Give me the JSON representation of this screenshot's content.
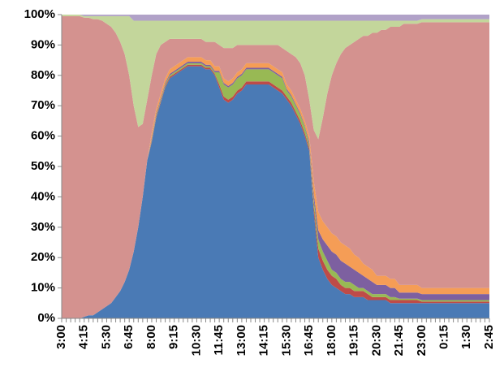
{
  "chart_data": {
    "type": "area",
    "stacked": true,
    "categories": [
      "3:00",
      null,
      null,
      null,
      null,
      "4:15",
      null,
      null,
      null,
      null,
      "5:30",
      null,
      null,
      null,
      null,
      "6:45",
      null,
      null,
      null,
      null,
      "8:00",
      null,
      null,
      null,
      null,
      "9:15",
      null,
      null,
      null,
      null,
      "10:30",
      null,
      null,
      null,
      null,
      "11:45",
      null,
      null,
      null,
      null,
      "13:00",
      null,
      null,
      null,
      null,
      "14:15",
      null,
      null,
      null,
      null,
      "15:30",
      null,
      null,
      null,
      null,
      "16:45",
      null,
      null,
      null,
      null,
      "18:00",
      null,
      null,
      null,
      null,
      "19:15",
      null,
      null,
      null,
      null,
      "20:30",
      null,
      null,
      null,
      null,
      "21:45",
      null,
      null,
      null,
      null,
      "23:00",
      null,
      null,
      null,
      null,
      "0:15",
      null,
      null,
      null,
      null,
      "1:30",
      null,
      null,
      null,
      null,
      "2:45"
    ],
    "ylim": [
      0,
      100
    ],
    "yticks": [
      {
        "value": 0,
        "label": "0%"
      },
      {
        "value": 10,
        "label": "10%"
      },
      {
        "value": 20,
        "label": "20%"
      },
      {
        "value": 30,
        "label": "30%"
      },
      {
        "value": 40,
        "label": "40%"
      },
      {
        "value": 50,
        "label": "50%"
      },
      {
        "value": 60,
        "label": "60%"
      },
      {
        "value": 70,
        "label": "70%"
      },
      {
        "value": 80,
        "label": "80%"
      },
      {
        "value": 90,
        "label": "90%"
      },
      {
        "value": 100,
        "label": "100%"
      }
    ],
    "series": [
      {
        "color": "#4a7ab5",
        "values": [
          0,
          0,
          0,
          0,
          0,
          0.5,
          1,
          1,
          2,
          3,
          4,
          5,
          7,
          9,
          12,
          16,
          22,
          30,
          40,
          52,
          58,
          66,
          71,
          76,
          79,
          80,
          81,
          82,
          83,
          83,
          83,
          83,
          82,
          82,
          80,
          76,
          72,
          71,
          72,
          74,
          75,
          77,
          77,
          77,
          77,
          77,
          77,
          76,
          75,
          74,
          72,
          70,
          67,
          64,
          60,
          55,
          35,
          20,
          16,
          13,
          11,
          10,
          9,
          8,
          8,
          7,
          7,
          7,
          6,
          6,
          6,
          6,
          6,
          5,
          5,
          5,
          5,
          5,
          5,
          5,
          5,
          5,
          5,
          5,
          5,
          5,
          5,
          5,
          5,
          5,
          5,
          5,
          5,
          5,
          5,
          5
        ]
      },
      {
        "color": "#be4b48",
        "values": [
          0,
          0,
          0,
          0,
          0,
          0,
          0,
          0,
          0,
          0,
          0,
          0,
          0,
          0,
          0,
          0,
          0,
          0,
          0,
          0,
          0.5,
          0.5,
          0.5,
          0.5,
          0.5,
          0.5,
          0.5,
          0.5,
          0.5,
          0.5,
          0.5,
          0.5,
          0.5,
          0.5,
          0.5,
          1,
          1,
          1,
          1,
          1,
          1,
          1,
          1,
          1,
          1,
          1,
          1,
          1,
          1,
          1,
          1,
          1,
          1,
          1,
          1,
          1,
          2,
          3,
          3,
          3,
          3,
          3,
          2,
          2,
          2,
          2,
          2,
          2,
          2,
          1,
          1,
          1,
          1,
          1,
          1,
          1,
          1,
          1,
          1,
          1,
          0.5,
          0.5,
          0.5,
          0.5,
          0.5,
          0.5,
          0.5,
          0.5,
          0.5,
          0.5,
          0.5,
          0.5,
          0.5,
          0.5,
          0.5,
          0.5
        ]
      },
      {
        "color": "#98b954",
        "values": [
          0,
          0,
          0,
          0,
          0,
          0,
          0,
          0,
          0,
          0,
          0,
          0,
          0,
          0,
          0,
          0,
          0,
          0,
          0,
          0,
          0.5,
          0.5,
          0.5,
          0.5,
          0.5,
          0.5,
          0.5,
          0.5,
          0.5,
          0.5,
          0.5,
          0.5,
          0.5,
          0.5,
          0.5,
          4,
          4,
          4,
          4,
          4,
          4,
          4,
          4,
          4,
          4,
          4,
          4,
          4,
          4,
          4,
          2,
          2,
          2,
          2,
          2,
          1,
          2,
          3,
          3,
          3,
          2,
          2,
          2,
          2,
          2,
          2,
          1,
          1,
          1,
          1,
          1,
          1,
          1,
          1,
          1,
          0.5,
          0.5,
          0.5,
          0.5,
          0.5,
          0.5,
          0.5,
          0.5,
          0.5,
          0.5,
          0.5,
          0.5,
          0.5,
          0.5,
          0.5,
          0.5,
          0.5,
          0.5,
          0.5,
          0.5,
          0.5
        ]
      },
      {
        "color": "#7d60a0",
        "values": [
          0,
          0,
          0,
          0,
          0,
          0,
          0,
          0,
          0,
          0,
          0,
          0,
          0,
          0,
          0,
          0,
          0,
          0,
          0,
          0,
          0.5,
          0.5,
          0.5,
          0.5,
          0.5,
          0.5,
          0.5,
          0.5,
          0.5,
          0.5,
          0.5,
          0.5,
          0.5,
          0.5,
          0.5,
          0.5,
          0.5,
          0.5,
          0.5,
          0.5,
          0.5,
          0.5,
          0.5,
          0.5,
          0.5,
          0.5,
          0.5,
          0.5,
          0.5,
          0.5,
          0.5,
          0.5,
          0.5,
          0.5,
          0.5,
          1,
          2,
          3,
          4,
          5,
          6,
          6,
          6,
          6,
          5,
          5,
          5,
          4,
          4,
          4,
          3,
          3,
          3,
          3,
          3,
          2,
          2,
          2,
          2,
          2,
          2,
          2,
          2,
          2,
          2,
          2,
          2,
          2,
          2,
          2,
          2,
          2,
          2,
          2,
          2,
          2
        ]
      },
      {
        "color": "#f59d56",
        "values": [
          0,
          0,
          0,
          0,
          0,
          0,
          0,
          0,
          0,
          0,
          0,
          0,
          0,
          0,
          0,
          0,
          0,
          0,
          0,
          0,
          1.5,
          1.5,
          1.5,
          1.5,
          1.5,
          1.5,
          1.5,
          1.5,
          1.5,
          1.5,
          1.5,
          1.5,
          1.5,
          1.5,
          1.5,
          1.5,
          1.5,
          1.5,
          1.5,
          1.5,
          1.5,
          1.5,
          1.5,
          1.5,
          1.5,
          1.5,
          1.5,
          1.5,
          1.5,
          1.5,
          1.5,
          1.5,
          1.5,
          1.5,
          1.5,
          2,
          4,
          6,
          6,
          6,
          6,
          6,
          6,
          6,
          6,
          5,
          5,
          4,
          4,
          4,
          3,
          3,
          3,
          3,
          3,
          2.5,
          2.5,
          2.5,
          2.5,
          2.5,
          2,
          2,
          2,
          2,
          2,
          2,
          2,
          2,
          2,
          2,
          2,
          2,
          2,
          2,
          2,
          2
        ]
      },
      {
        "color": "#d4928f",
        "values": [
          99.5,
          99.5,
          99.5,
          99.5,
          99.5,
          98.5,
          98,
          97.5,
          96.5,
          95,
          93,
          91,
          87,
          82,
          75,
          64,
          48,
          33,
          24,
          20,
          19,
          18,
          16,
          12,
          10,
          9,
          8,
          7,
          6,
          6,
          6,
          6,
          6,
          6,
          8,
          7,
          10,
          11,
          10,
          9,
          8,
          6,
          6,
          6,
          6,
          6,
          6,
          7,
          8,
          8,
          11,
          12,
          14,
          15,
          15,
          12,
          17,
          24,
          34,
          44,
          52,
          57,
          62,
          65,
          67,
          70,
          72,
          75,
          76,
          78,
          80,
          81,
          81,
          83,
          83,
          85,
          86,
          86,
          86,
          86,
          87.5,
          87.5,
          87.5,
          87.5,
          87.5,
          87.5,
          87.5,
          87.5,
          87.5,
          87.5,
          87.5,
          87.5,
          87.5,
          87.5,
          87.5,
          87.5
        ]
      },
      {
        "color": "#c3d69b",
        "values": [
          0.5,
          0.5,
          0.5,
          0.5,
          0.5,
          0.5,
          0.5,
          1,
          1,
          1.5,
          2.5,
          3.5,
          5.5,
          8.5,
          12.5,
          19.5,
          28,
          35,
          34,
          26,
          18,
          11,
          8,
          7,
          6,
          6,
          6,
          6,
          6,
          6,
          6,
          6,
          7,
          7,
          7,
          8,
          9,
          9,
          9,
          8,
          8,
          8,
          8,
          8,
          8,
          8,
          8,
          8,
          8,
          9,
          10,
          11,
          12,
          14,
          18,
          26,
          36,
          39,
          32,
          24,
          18,
          14,
          11,
          9,
          8,
          7,
          6,
          5,
          5,
          4,
          4,
          3,
          3,
          2,
          2,
          2,
          1,
          1,
          1,
          1,
          1,
          1,
          1,
          1,
          1,
          1,
          1,
          1,
          1,
          1,
          1,
          1,
          1,
          1,
          1,
          1
        ]
      },
      {
        "color": "#b1a2c8",
        "values": [
          0,
          0,
          0,
          0,
          0,
          0.5,
          0.5,
          0.5,
          0.5,
          0.5,
          0.5,
          0.5,
          0.5,
          0.5,
          0.5,
          0.5,
          2,
          2,
          2,
          2,
          2,
          2,
          2,
          2,
          2,
          2,
          2,
          2,
          2,
          2,
          2,
          2,
          2,
          2,
          2,
          2,
          2,
          2,
          2,
          2,
          2,
          2,
          2,
          2,
          2,
          2,
          2,
          2,
          2,
          2,
          2,
          2,
          2,
          2,
          2,
          2,
          2,
          2,
          2,
          2,
          2,
          2,
          2,
          2,
          2,
          2,
          2,
          2,
          2,
          2,
          2,
          2,
          2,
          2,
          2,
          2,
          2,
          2,
          2,
          2,
          1.5,
          1.5,
          1.5,
          1.5,
          1.5,
          1.5,
          1.5,
          1.5,
          1.5,
          1.5,
          1.5,
          1.5,
          1.5,
          1.5,
          1.5,
          1.5
        ]
      }
    ]
  }
}
